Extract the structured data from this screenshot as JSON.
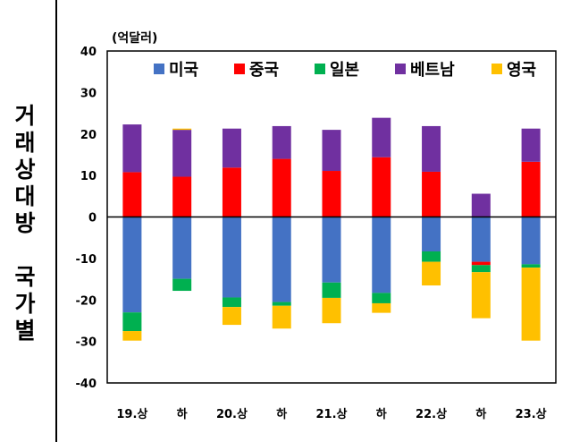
{
  "side_title": [
    "거",
    "래",
    "상",
    "대",
    "방",
    "",
    "국",
    "가",
    "별"
  ],
  "chart_data": {
    "type": "bar",
    "stacked": true,
    "unit_label": "(억달러)",
    "categories": [
      "19.상",
      "하",
      "20.상",
      "하",
      "21.상",
      "하",
      "22.상",
      "하",
      "23.상"
    ],
    "ylim": [
      -40,
      40
    ],
    "yticks": [
      40,
      30,
      20,
      10,
      0,
      -10,
      -20,
      -30,
      -40
    ],
    "grid": false,
    "legend_position": "top",
    "series": [
      {
        "name": "미국",
        "color": "#4472C4",
        "values": [
          -23.0,
          -14.9,
          -19.4,
          -20.5,
          -15.8,
          -18.3,
          -8.3,
          -10.8,
          -11.4
        ]
      },
      {
        "name": "중국",
        "color": "#FF0000",
        "values": [
          10.8,
          9.7,
          11.9,
          14.0,
          11.1,
          14.4,
          10.9,
          -0.8,
          13.3
        ]
      },
      {
        "name": "일본",
        "color": "#00B050",
        "values": [
          -4.5,
          -2.9,
          -2.3,
          -0.9,
          -3.7,
          -2.5,
          -2.5,
          -1.7,
          -0.8
        ]
      },
      {
        "name": "베트남",
        "color": "#7030A0",
        "values": [
          11.5,
          11.3,
          9.4,
          7.9,
          9.9,
          9.5,
          11.0,
          5.6,
          8.0
        ]
      },
      {
        "name": "영국",
        "color": "#FFC000",
        "values": [
          -2.3,
          0.3,
          -4.3,
          -5.5,
          -6.1,
          -2.3,
          -5.7,
          -11.1,
          -17.6
        ]
      }
    ]
  }
}
